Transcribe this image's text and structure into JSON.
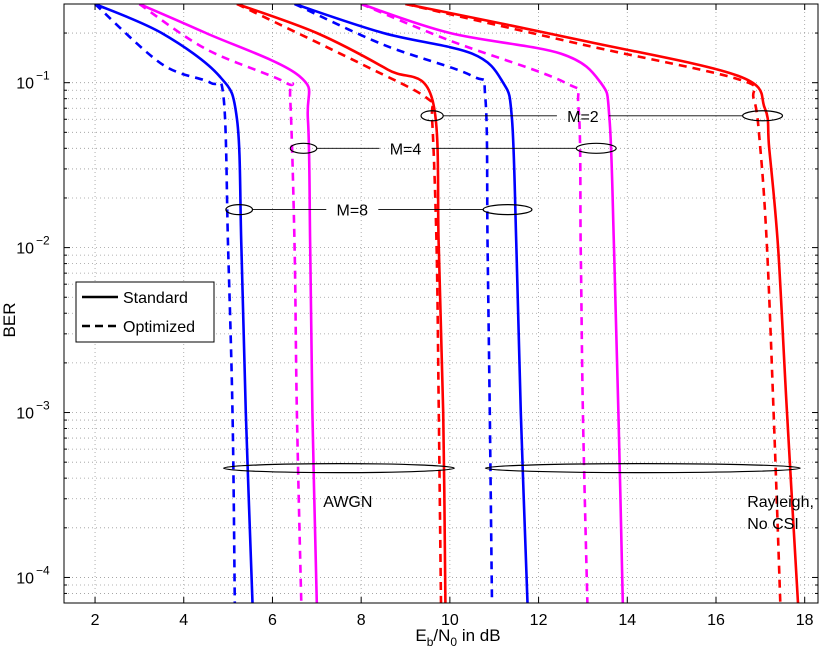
{
  "chart_data": {
    "type": "line",
    "ylog": true,
    "xlabel": {
      "base": "E",
      "sub1": "b",
      "mid": "/N",
      "sub2": "0",
      "rest": " in dB"
    },
    "ylabel": "BER",
    "xlim": [
      1.3,
      18.3
    ],
    "ylim": [
      7e-05,
      0.3
    ],
    "xticks": [
      2,
      4,
      6,
      8,
      10,
      12,
      14,
      16,
      18
    ],
    "yticks": [
      {
        "value": 0.1,
        "base": "10",
        "exp": "−1"
      },
      {
        "value": 0.01,
        "base": "10",
        "exp": "−2"
      },
      {
        "value": 0.001,
        "base": "10",
        "exp": "−3"
      },
      {
        "value": 0.0001,
        "base": "10",
        "exp": "−4"
      }
    ],
    "grid": true,
    "legend": {
      "position": "middle-left",
      "entries": [
        {
          "label": "Standard",
          "style": "solid"
        },
        {
          "label": "Optimized",
          "style": "dashed"
        }
      ]
    },
    "colors": {
      "M=2": "#ff0000",
      "M=4": "#ff00ff",
      "M=8": "#0000ff"
    },
    "series": [
      {
        "name": "AWGN M=8 Standard",
        "channel": "AWGN",
        "M": 8,
        "style": "solid",
        "color": "#0000ff",
        "points": [
          [
            2.0,
            0.3
          ],
          [
            3.5,
            0.2
          ],
          [
            4.8,
            0.11
          ],
          [
            5.2,
            0.06
          ],
          [
            5.3,
            0.01
          ],
          [
            5.4,
            0.001
          ],
          [
            5.55,
            7e-05
          ]
        ]
      },
      {
        "name": "AWGN M=8 Optimized",
        "channel": "AWGN",
        "M": 8,
        "style": "dashed",
        "color": "#0000ff",
        "points": [
          [
            2.0,
            0.3
          ],
          [
            3.5,
            0.13
          ],
          [
            4.6,
            0.1
          ],
          [
            4.9,
            0.08
          ],
          [
            5.0,
            0.01
          ],
          [
            5.1,
            0.001
          ],
          [
            5.15,
            7e-05
          ]
        ]
      },
      {
        "name": "AWGN M=4 Standard",
        "channel": "AWGN",
        "M": 4,
        "style": "solid",
        "color": "#ff00ff",
        "points": [
          [
            3.0,
            0.3
          ],
          [
            4.5,
            0.2
          ],
          [
            6.6,
            0.11
          ],
          [
            6.8,
            0.06
          ],
          [
            6.85,
            0.01
          ],
          [
            6.9,
            0.001
          ],
          [
            7.0,
            7e-05
          ]
        ]
      },
      {
        "name": "AWGN M=4 Optimized",
        "channel": "AWGN",
        "M": 4,
        "style": "dashed",
        "color": "#ff00ff",
        "points": [
          [
            3.0,
            0.3
          ],
          [
            4.5,
            0.16
          ],
          [
            6.3,
            0.1
          ],
          [
            6.4,
            0.08
          ],
          [
            6.5,
            0.01
          ],
          [
            6.55,
            0.001
          ],
          [
            6.65,
            7e-05
          ]
        ]
      },
      {
        "name": "AWGN M=2 Standard",
        "channel": "AWGN",
        "M": 2,
        "style": "solid",
        "color": "#ff0000",
        "points": [
          [
            5.2,
            0.3
          ],
          [
            7.0,
            0.2
          ],
          [
            8.6,
            0.12
          ],
          [
            9.6,
            0.08
          ],
          [
            9.75,
            0.01
          ],
          [
            9.85,
            0.001
          ],
          [
            9.9,
            7e-05
          ]
        ]
      },
      {
        "name": "AWGN M=2 Optimized",
        "channel": "AWGN",
        "M": 2,
        "style": "dashed",
        "color": "#ff0000",
        "points": [
          [
            5.2,
            0.3
          ],
          [
            8.0,
            0.13
          ],
          [
            9.5,
            0.08
          ],
          [
            9.6,
            0.06
          ],
          [
            9.7,
            0.01
          ],
          [
            9.75,
            0.001
          ],
          [
            9.8,
            7e-05
          ]
        ]
      },
      {
        "name": "Rayleigh M=8 Standard",
        "channel": "Rayleigh",
        "M": 8,
        "style": "solid",
        "color": "#0000ff",
        "points": [
          [
            6.5,
            0.3
          ],
          [
            8.5,
            0.2
          ],
          [
            10.5,
            0.15
          ],
          [
            11.2,
            0.1
          ],
          [
            11.4,
            0.06
          ],
          [
            11.5,
            0.01
          ],
          [
            11.6,
            0.001
          ],
          [
            11.75,
            7e-05
          ]
        ]
      },
      {
        "name": "Rayleigh M=8 Optimized",
        "channel": "Rayleigh",
        "M": 8,
        "style": "dashed",
        "color": "#0000ff",
        "points": [
          [
            6.5,
            0.3
          ],
          [
            8.5,
            0.17
          ],
          [
            10.5,
            0.11
          ],
          [
            10.8,
            0.08
          ],
          [
            10.85,
            0.01
          ],
          [
            10.9,
            0.001
          ],
          [
            10.95,
            7e-05
          ]
        ]
      },
      {
        "name": "Rayleigh M=4 Standard",
        "channel": "Rayleigh",
        "M": 4,
        "style": "solid",
        "color": "#ff00ff",
        "points": [
          [
            8.0,
            0.3
          ],
          [
            10.0,
            0.2
          ],
          [
            12.5,
            0.15
          ],
          [
            13.4,
            0.1
          ],
          [
            13.6,
            0.06
          ],
          [
            13.7,
            0.01
          ],
          [
            13.8,
            0.001
          ],
          [
            13.9,
            7e-05
          ]
        ]
      },
      {
        "name": "Rayleigh M=4 Optimized",
        "channel": "Rayleigh",
        "M": 4,
        "style": "dashed",
        "color": "#ff00ff",
        "points": [
          [
            8.0,
            0.3
          ],
          [
            10.0,
            0.18
          ],
          [
            12.6,
            0.1
          ],
          [
            12.9,
            0.07
          ],
          [
            12.95,
            0.01
          ],
          [
            13.0,
            0.001
          ],
          [
            13.1,
            7e-05
          ]
        ]
      },
      {
        "name": "Rayleigh M=2 Standard",
        "channel": "Rayleigh",
        "M": 2,
        "style": "solid",
        "color": "#ff0000",
        "points": [
          [
            9.0,
            0.3
          ],
          [
            13.0,
            0.18
          ],
          [
            16.5,
            0.11
          ],
          [
            17.1,
            0.07
          ],
          [
            17.2,
            0.04
          ],
          [
            17.4,
            0.01
          ],
          [
            17.6,
            0.001
          ],
          [
            17.85,
            7e-05
          ]
        ]
      },
      {
        "name": "Rayleigh M=2 Optimized",
        "channel": "Rayleigh",
        "M": 2,
        "style": "dashed",
        "color": "#ff0000",
        "points": [
          [
            9.0,
            0.3
          ],
          [
            13.0,
            0.17
          ],
          [
            16.5,
            0.105
          ],
          [
            16.85,
            0.08
          ],
          [
            17.0,
            0.04
          ],
          [
            17.15,
            0.01
          ],
          [
            17.3,
            0.001
          ],
          [
            17.45,
            7e-05
          ]
        ]
      }
    ],
    "annotations": [
      {
        "label": "M=2",
        "x": 13.0,
        "y": 0.063,
        "ellipses": [
          [
            9.6,
            0.063,
            0.25
          ],
          [
            17.05,
            0.063,
            0.45
          ]
        ]
      },
      {
        "label": "M=4",
        "x": 9.0,
        "y": 0.04,
        "ellipses": [
          [
            6.7,
            0.04,
            0.3
          ],
          [
            13.3,
            0.04,
            0.45
          ]
        ]
      },
      {
        "label": "M=8",
        "x": 7.8,
        "y": 0.017,
        "ellipses": [
          [
            5.25,
            0.017,
            0.3
          ],
          [
            11.3,
            0.017,
            0.55
          ]
        ]
      },
      {
        "label": "AWGN",
        "x": 7.7,
        "y": 0.00029,
        "ellipse": [
          7.5,
          0.00046,
          2.6
        ]
      },
      {
        "label": "Rayleigh,",
        "line2": "No CSI",
        "x": 17.2,
        "y": 0.00029,
        "ellipse": [
          14.35,
          0.00046,
          3.55
        ]
      }
    ]
  }
}
